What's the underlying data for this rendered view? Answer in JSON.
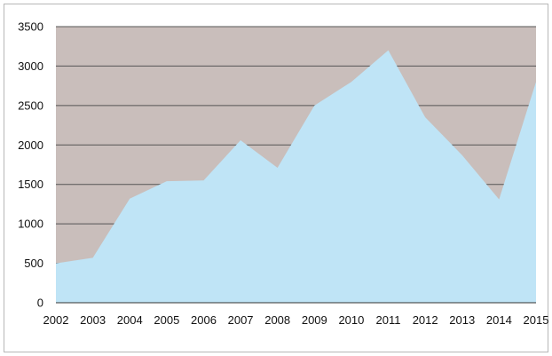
{
  "chart_data": {
    "type": "area",
    "categories": [
      "2002",
      "2003",
      "2004",
      "2005",
      "2006",
      "2007",
      "2008",
      "2009",
      "2010",
      "2011",
      "2012",
      "2013",
      "2014",
      "2015"
    ],
    "series": [
      {
        "values": [
          500,
          570,
          1320,
          1540,
          1550,
          2060,
          1710,
          2500,
          2800,
          3200,
          2350,
          1870,
          1310,
          2800
        ],
        "color": "#bfe4f6"
      }
    ],
    "ylim": [
      0,
      3500
    ],
    "yticks": [
      "0",
      "500",
      "1000",
      "1500",
      "2000",
      "2500",
      "3000",
      "3500"
    ],
    "title": "",
    "xlabel": "",
    "ylabel": "",
    "grid": true,
    "legend": "none",
    "plot_background": "#c9bebb",
    "gridline_color": "#555555",
    "axis_color": "#333333"
  }
}
